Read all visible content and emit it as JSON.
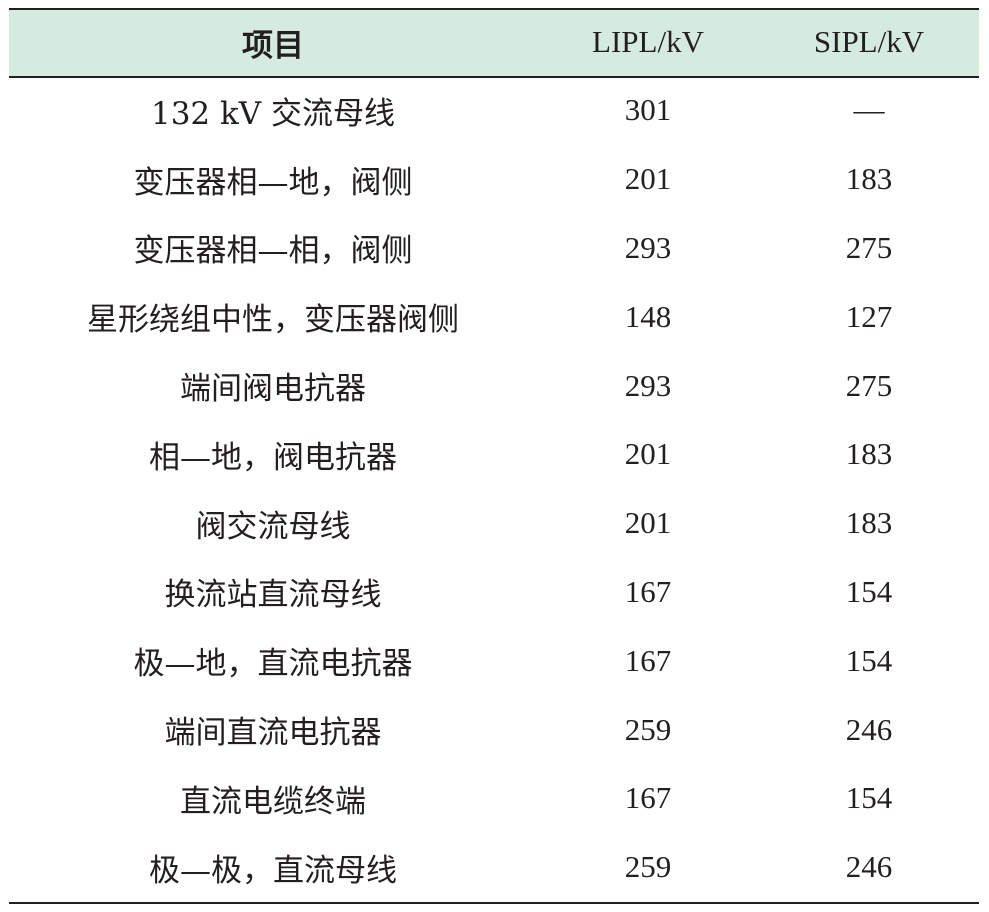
{
  "table": {
    "headers": [
      "项目",
      "LIPL/kV",
      "SIPL/kV"
    ],
    "rows": [
      {
        "item": "132 kV 交流母线",
        "lipl": "301",
        "sipl": "—"
      },
      {
        "item": "变压器相—地，阀侧",
        "lipl": "201",
        "sipl": "183"
      },
      {
        "item": "变压器相—相，阀侧",
        "lipl": "293",
        "sipl": "275"
      },
      {
        "item": "星形绕组中性，变压器阀侧",
        "lipl": "148",
        "sipl": "127"
      },
      {
        "item": "端间阀电抗器",
        "lipl": "293",
        "sipl": "275"
      },
      {
        "item": "相—地，阀电抗器",
        "lipl": "201",
        "sipl": "183"
      },
      {
        "item": "阀交流母线",
        "lipl": "201",
        "sipl": "183"
      },
      {
        "item": "换流站直流母线",
        "lipl": "167",
        "sipl": "154"
      },
      {
        "item": "极—地，直流电抗器",
        "lipl": "167",
        "sipl": "154"
      },
      {
        "item": "端间直流电抗器",
        "lipl": "259",
        "sipl": "246"
      },
      {
        "item": "直流电缆终端",
        "lipl": "167",
        "sipl": "154"
      },
      {
        "item": "极—极，直流母线",
        "lipl": "259",
        "sipl": "246"
      }
    ]
  },
  "colors": {
    "header_bg": "#d6ebe0",
    "text": "#231f20",
    "rule": "#231f20"
  }
}
